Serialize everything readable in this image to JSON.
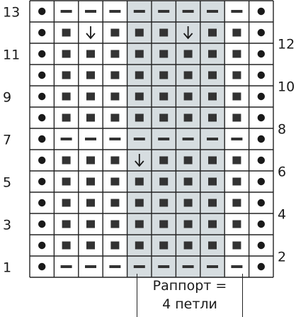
{
  "chart_data": {
    "type": "knitting-chart",
    "columns": 10,
    "rows": [
      {
        "row": 13,
        "label": "13",
        "cells": [
          "E",
          "P",
          "P",
          "P",
          "P",
          "P",
          "P",
          "P",
          "P",
          "E"
        ]
      },
      {
        "row": 12,
        "label": "12",
        "cells": [
          "E",
          "K",
          "D",
          "K",
          "K",
          "K",
          "D",
          "K",
          "K",
          "E"
        ]
      },
      {
        "row": 11,
        "label": "11",
        "cells": [
          "E",
          "K",
          "K",
          "K",
          "K",
          "K",
          "K",
          "K",
          "K",
          "E"
        ]
      },
      {
        "row": 10,
        "label": "10",
        "cells": [
          "E",
          "K",
          "K",
          "K",
          "K",
          "K",
          "K",
          "K",
          "K",
          "E"
        ]
      },
      {
        "row": 9,
        "label": "9",
        "cells": [
          "E",
          "K",
          "K",
          "K",
          "K",
          "K",
          "K",
          "K",
          "K",
          "E"
        ]
      },
      {
        "row": 8,
        "label": "8",
        "cells": [
          "E",
          "K",
          "K",
          "K",
          "K",
          "K",
          "K",
          "K",
          "K",
          "E"
        ]
      },
      {
        "row": 7,
        "label": "7",
        "cells": [
          "E",
          "P",
          "P",
          "P",
          "P",
          "P",
          "P",
          "P",
          "P",
          "E"
        ]
      },
      {
        "row": 6,
        "label": "6",
        "cells": [
          "E",
          "K",
          "K",
          "K",
          "D",
          "K",
          "K",
          "K",
          "K",
          "E"
        ]
      },
      {
        "row": 5,
        "label": "5",
        "cells": [
          "E",
          "K",
          "K",
          "K",
          "K",
          "K",
          "K",
          "K",
          "K",
          "E"
        ]
      },
      {
        "row": 4,
        "label": "4",
        "cells": [
          "E",
          "K",
          "K",
          "K",
          "K",
          "K",
          "K",
          "K",
          "K",
          "E"
        ]
      },
      {
        "row": 3,
        "label": "3",
        "cells": [
          "E",
          "K",
          "K",
          "K",
          "K",
          "K",
          "K",
          "K",
          "K",
          "E"
        ]
      },
      {
        "row": 2,
        "label": "2",
        "cells": [
          "E",
          "K",
          "K",
          "K",
          "K",
          "K",
          "K",
          "K",
          "K",
          "E"
        ]
      },
      {
        "row": 1,
        "label": "1",
        "cells": [
          "E",
          "P",
          "P",
          "P",
          "P",
          "P",
          "P",
          "P",
          "P",
          "E"
        ]
      }
    ],
    "repeat": {
      "first_column": 5,
      "last_column": 8,
      "shade": "#d6dde0"
    },
    "rapport_label_line1": "Раппорт =",
    "rapport_label_line2": "4 петли"
  },
  "colors": {
    "ink": "#1a1a1a",
    "grid": "#222222",
    "repeat_shade": "#d6dde0"
  }
}
